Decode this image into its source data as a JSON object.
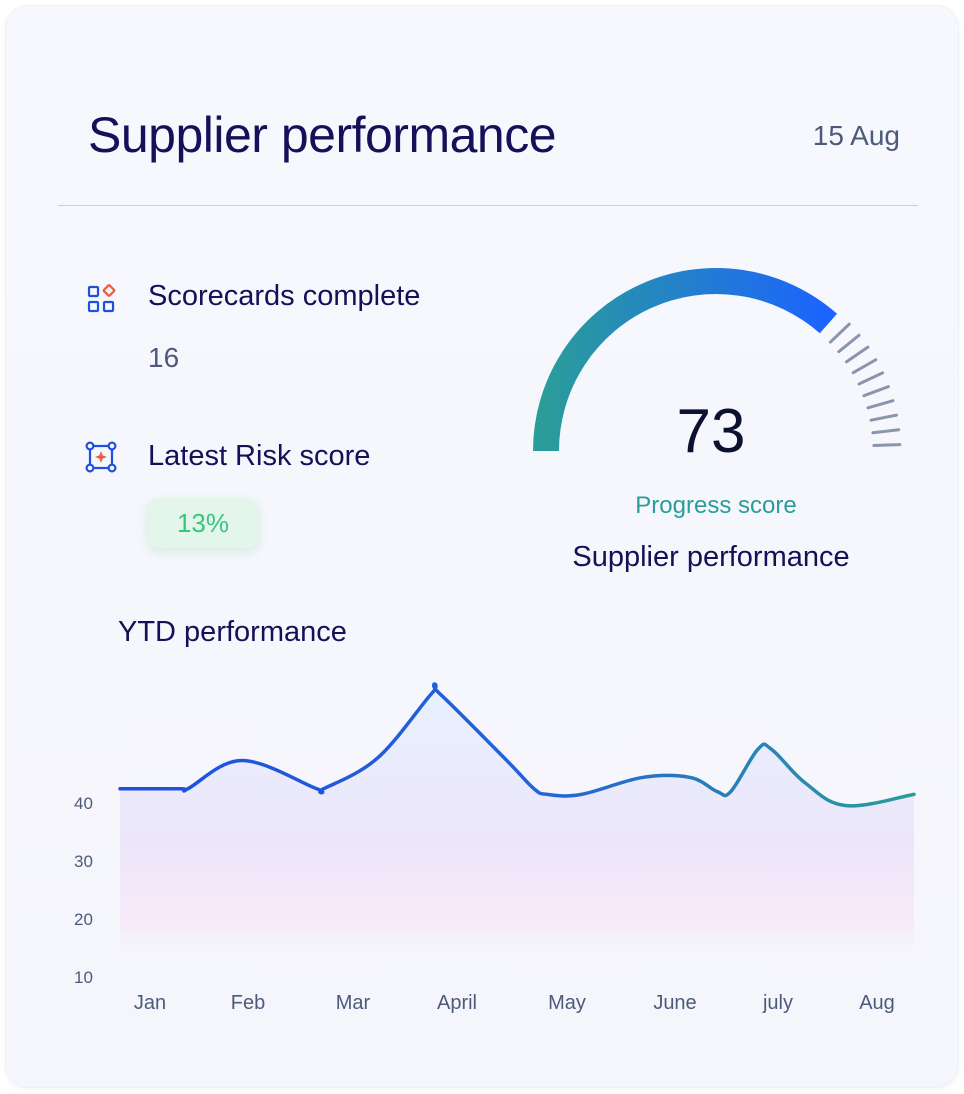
{
  "header": {
    "title": "Supplier performance",
    "date": "15 Aug"
  },
  "stats": {
    "scorecards": {
      "label": "Scorecards complete",
      "value": "16",
      "icon": "widgets-icon"
    },
    "risk": {
      "label": "Latest Risk score",
      "value": "13%",
      "icon": "bounding-box-icon"
    }
  },
  "gauge": {
    "value": "73",
    "label": "Progress score",
    "subtitle": "Supplier performance",
    "fraction": 0.73,
    "colors": [
      "#2a9c9a",
      "#1c63ff",
      "#8a95ab"
    ]
  },
  "chart_data": {
    "type": "area",
    "title": "YTD performance",
    "categories": [
      "Jan",
      "Feb",
      "Mar",
      "April",
      "May",
      "June",
      "july",
      "Aug"
    ],
    "x": [
      0.9,
      1.8,
      1.9,
      2.7,
      3.8,
      3.9,
      4.7,
      5.5,
      5.6,
      6.6,
      7.0,
      7.2,
      7.7,
      8.6,
      9.3,
      9.7,
      9.9,
      10.3,
      10.5,
      11.0,
      11.6,
      12.6
    ],
    "values": [
      43,
      43,
      43,
      48,
      43,
      43,
      48.5,
      60,
      60,
      48,
      43,
      42,
      42,
      45,
      45,
      42.5,
      42.5,
      50,
      50,
      44,
      40,
      42
    ],
    "yticks": [
      40,
      30,
      20,
      10
    ],
    "ylim": [
      8,
      63
    ],
    "grid": false,
    "colors": {
      "line_start": "#1d4fe0",
      "line_end": "#2a9c9a",
      "fill_top": "#e7f1fc",
      "fill_mid": "#ece6fb",
      "fill_bottom": "#f7e9f8"
    }
  }
}
